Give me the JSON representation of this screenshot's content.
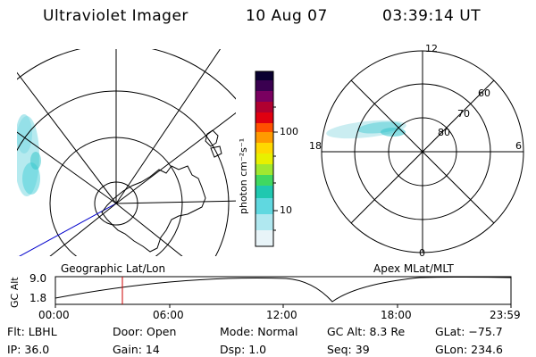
{
  "header": {
    "instrument": "Ultraviolet Imager",
    "date": "10 Aug 07",
    "time": "03:39:14 UT"
  },
  "left_panel": {
    "label": "Geographic Lat/Lon"
  },
  "right_panel": {
    "label": "Apex MLat/MLT",
    "mlt_labels": [
      "12",
      "18",
      "6",
      "0"
    ],
    "lat_labels": [
      "60",
      "70",
      "80"
    ]
  },
  "colorbar": {
    "unit_label": "photon cm⁻²s⁻¹",
    "ticks": [
      "100",
      "10"
    ],
    "colors": [
      "#0a0030",
      "#3a0050",
      "#7a0060",
      "#b00030",
      "#e00010",
      "#ff5000",
      "#ff9a00",
      "#ffd800",
      "#e8f000",
      "#a0e830",
      "#40d860",
      "#20c8b0",
      "#60d8e0",
      "#b0e8f0",
      "#e8f4f8"
    ]
  },
  "altitude_plot": {
    "ylabel": "GC Alt",
    "yticks": [
      "9.0",
      "1.8"
    ],
    "xticks": [
      "00:00",
      "06:00",
      "12:00",
      "18:00",
      "23:59"
    ],
    "line_color": "#000000",
    "marker_color": "#cc0000"
  },
  "info": {
    "filter": "Flt: LBHL",
    "door": "Door: Open",
    "mode": "Mode: Normal",
    "gc_alt": "GC Alt: 8.3 Re",
    "glat": "GLat: −75.7",
    "ip": "IP: 36.0",
    "gain": "Gain: 14",
    "dsp": "Dsp:    1.0",
    "seq": "Seq: 39",
    "glon": "GLon: 234.6"
  }
}
